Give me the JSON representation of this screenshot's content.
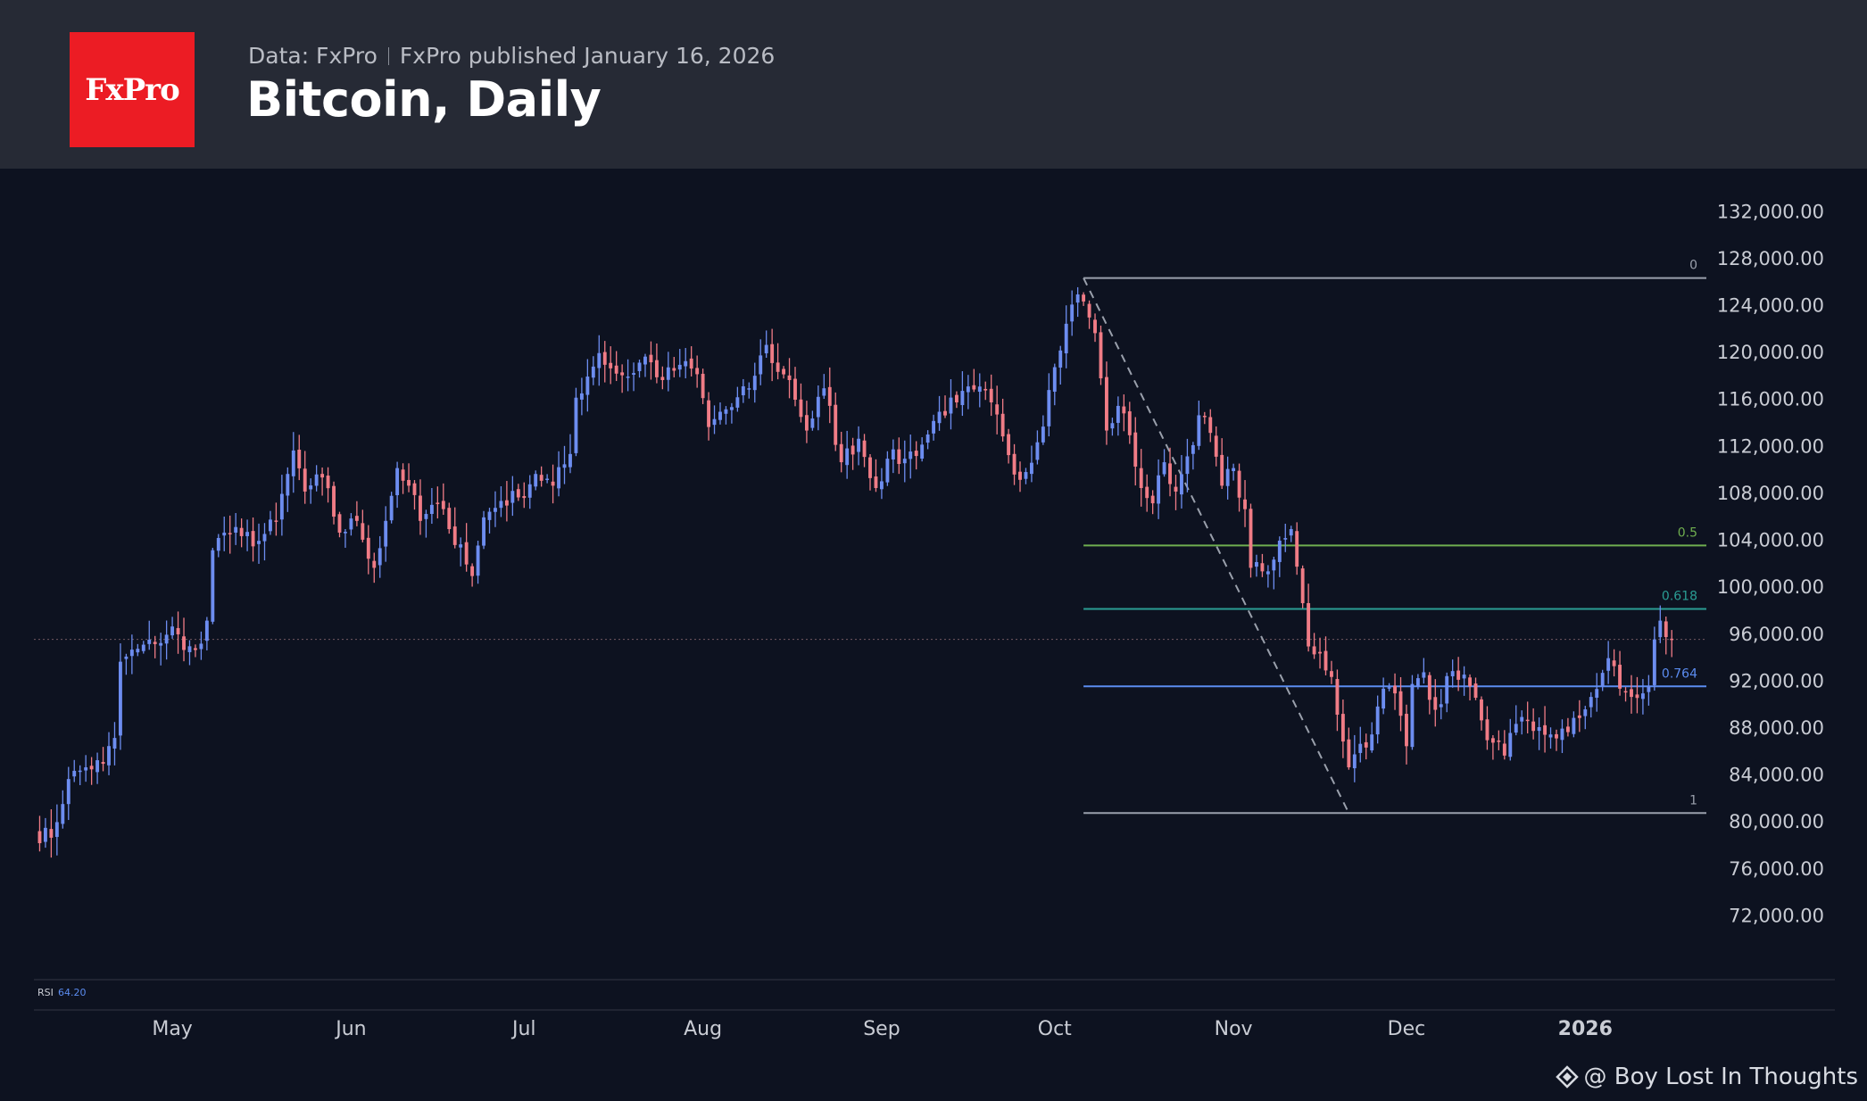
{
  "header": {
    "logo_text": "FxPro",
    "data_source": "Data: FxPro",
    "published": "FxPro published January 16, 2026",
    "title": "Bitcoin, Daily"
  },
  "watermark": "@ Boy Lost In Thoughts",
  "colors": {
    "background": "#0d1220",
    "header": "#262a35",
    "logo": "#ec1c24",
    "up": "#6d8df0",
    "down": "#f07c86",
    "fib_0": "#9aa0ac",
    "fib_05": "#6fae4f",
    "fib_0618": "#2a9d94",
    "fib_0764": "#5b8cf0",
    "fib_1": "#9aa0ac"
  },
  "chart_data": {
    "type": "candlestick",
    "title": "Bitcoin, Daily",
    "ylim": [
      68000,
      134000
    ],
    "y_ticks": [
      132000,
      128000,
      124000,
      120000,
      116000,
      112000,
      108000,
      104000,
      100000,
      96000,
      92000,
      88000,
      84000,
      80000,
      76000,
      72000
    ],
    "y_tick_labels": [
      "132,000.00",
      "128,000.00",
      "124,000.00",
      "120,000.00",
      "116,000.00",
      "112,000.00",
      "108,000.00",
      "104,000.00",
      "100,000.00",
      "96,000.00",
      "92,000.00",
      "88,000.00",
      "84,000.00",
      "80,000.00",
      "76,000.00",
      "72,000.00"
    ],
    "x_start": "2025-04-07",
    "x_end": "2026-01-22",
    "x_ticks": [
      {
        "date": "2025-05-01",
        "label": "May",
        "bold": false
      },
      {
        "date": "2025-06-01",
        "label": "Jun",
        "bold": false
      },
      {
        "date": "2025-07-01",
        "label": "Jul",
        "bold": false
      },
      {
        "date": "2025-08-01",
        "label": "Aug",
        "bold": false
      },
      {
        "date": "2025-09-01",
        "label": "Sep",
        "bold": false
      },
      {
        "date": "2025-10-01",
        "label": "Oct",
        "bold": false
      },
      {
        "date": "2025-11-01",
        "label": "Nov",
        "bold": false
      },
      {
        "date": "2025-12-01",
        "label": "Dec",
        "bold": false
      },
      {
        "date": "2026-01-01",
        "label": "2026",
        "bold": true
      }
    ],
    "closes": [
      [
        "2025-04-07",
        79000
      ],
      [
        "2025-04-10",
        78500
      ],
      [
        "2025-04-13",
        83500
      ],
      [
        "2025-04-16",
        84500
      ],
      [
        "2025-04-19",
        84800
      ],
      [
        "2025-04-21",
        87000
      ],
      [
        "2025-04-22",
        93500
      ],
      [
        "2025-04-25",
        94600
      ],
      [
        "2025-04-28",
        95000
      ],
      [
        "2025-05-01",
        96500
      ],
      [
        "2025-05-03",
        94500
      ],
      [
        "2025-05-05",
        94500
      ],
      [
        "2025-05-07",
        97000
      ],
      [
        "2025-05-08",
        103000
      ],
      [
        "2025-05-10",
        104500
      ],
      [
        "2025-05-13",
        104200
      ],
      [
        "2025-05-16",
        103800
      ],
      [
        "2025-05-19",
        105500
      ],
      [
        "2025-05-21",
        109500
      ],
      [
        "2025-05-22",
        111500
      ],
      [
        "2025-05-24",
        108000
      ],
      [
        "2025-05-27",
        109200
      ],
      [
        "2025-05-30",
        104500
      ],
      [
        "2025-06-02",
        105500
      ],
      [
        "2025-06-05",
        101500
      ],
      [
        "2025-06-07",
        105500
      ],
      [
        "2025-06-09",
        110000
      ],
      [
        "2025-06-11",
        108500
      ],
      [
        "2025-06-13",
        105500
      ],
      [
        "2025-06-16",
        107000
      ],
      [
        "2025-06-18",
        104800
      ],
      [
        "2025-06-20",
        103500
      ],
      [
        "2025-06-22",
        100800
      ],
      [
        "2025-06-24",
        105800
      ],
      [
        "2025-06-27",
        107200
      ],
      [
        "2025-06-30",
        107500
      ],
      [
        "2025-07-03",
        109500
      ],
      [
        "2025-07-06",
        108500
      ],
      [
        "2025-07-09",
        111200
      ],
      [
        "2025-07-10",
        116000
      ],
      [
        "2025-07-12",
        117800
      ],
      [
        "2025-07-14",
        119800
      ],
      [
        "2025-07-16",
        118500
      ],
      [
        "2025-07-19",
        117800
      ],
      [
        "2025-07-22",
        119500
      ],
      [
        "2025-07-25",
        117500
      ],
      [
        "2025-07-28",
        118800
      ],
      [
        "2025-07-31",
        118000
      ],
      [
        "2025-08-02",
        113500
      ],
      [
        "2025-08-04",
        114800
      ],
      [
        "2025-08-06",
        115200
      ],
      [
        "2025-08-09",
        116800
      ],
      [
        "2025-08-12",
        120500
      ],
      [
        "2025-08-14",
        118200
      ],
      [
        "2025-08-16",
        117500
      ],
      [
        "2025-08-19",
        113200
      ],
      [
        "2025-08-22",
        116800
      ],
      [
        "2025-08-25",
        110500
      ],
      [
        "2025-08-28",
        112500
      ],
      [
        "2025-08-31",
        108300
      ],
      [
        "2025-09-02",
        110800
      ],
      [
        "2025-09-05",
        110800
      ],
      [
        "2025-09-08",
        112000
      ],
      [
        "2025-09-11",
        114800
      ],
      [
        "2025-09-14",
        115600
      ],
      [
        "2025-09-17",
        116700
      ],
      [
        "2025-09-20",
        115600
      ],
      [
        "2025-09-22",
        112700
      ],
      [
        "2025-09-25",
        109000
      ],
      [
        "2025-09-28",
        112200
      ],
      [
        "2025-10-01",
        118600
      ],
      [
        "2025-10-03",
        122300
      ],
      [
        "2025-10-05",
        124800
      ],
      [
        "2025-10-06",
        124200
      ],
      [
        "2025-10-08",
        121500
      ],
      [
        "2025-10-10",
        113200
      ],
      [
        "2025-10-12",
        115300
      ],
      [
        "2025-10-14",
        112800
      ],
      [
        "2025-10-16",
        108300
      ],
      [
        "2025-10-18",
        107000
      ],
      [
        "2025-10-20",
        110500
      ],
      [
        "2025-10-22",
        108000
      ],
      [
        "2025-10-24",
        111000
      ],
      [
        "2025-10-26",
        114500
      ],
      [
        "2025-10-28",
        113000
      ],
      [
        "2025-10-30",
        108500
      ],
      [
        "2025-11-01",
        110000
      ],
      [
        "2025-11-03",
        106500
      ],
      [
        "2025-11-04",
        101500
      ],
      [
        "2025-11-06",
        101200
      ],
      [
        "2025-11-08",
        102200
      ],
      [
        "2025-11-11",
        104800
      ],
      [
        "2025-11-12",
        101600
      ],
      [
        "2025-11-14",
        94800
      ],
      [
        "2025-11-16",
        94200
      ],
      [
        "2025-11-18",
        92200
      ],
      [
        "2025-11-20",
        86700
      ],
      [
        "2025-11-21",
        84500
      ],
      [
        "2025-11-23",
        86500
      ],
      [
        "2025-11-25",
        87300
      ],
      [
        "2025-11-27",
        91200
      ],
      [
        "2025-11-29",
        90800
      ],
      [
        "2025-12-01",
        86300
      ],
      [
        "2025-12-02",
        91600
      ],
      [
        "2025-12-04",
        92600
      ],
      [
        "2025-12-06",
        89400
      ],
      [
        "2025-12-09",
        92700
      ],
      [
        "2025-12-11",
        92400
      ],
      [
        "2025-12-14",
        88500
      ],
      [
        "2025-12-16",
        86600
      ],
      [
        "2025-12-18",
        85500
      ],
      [
        "2025-12-20",
        88200
      ],
      [
        "2025-12-23",
        87600
      ],
      [
        "2025-12-26",
        87300
      ],
      [
        "2025-12-29",
        87500
      ],
      [
        "2025-12-31",
        88700
      ],
      [
        "2026-01-02",
        90500
      ],
      [
        "2026-01-05",
        93800
      ],
      [
        "2026-01-07",
        91200
      ],
      [
        "2026-01-09",
        90500
      ],
      [
        "2026-01-11",
        90800
      ],
      [
        "2026-01-12",
        91400
      ],
      [
        "2026-01-13",
        95400
      ],
      [
        "2026-01-14",
        97000
      ],
      [
        "2026-01-15",
        95600
      ],
      [
        "2026-01-16",
        95400
      ]
    ],
    "current_price": 95400,
    "fibonacci": {
      "start_date": "2025-10-06",
      "end_date": "2026-01-22",
      "high": 126200,
      "low": 80600,
      "levels": [
        {
          "label": "0",
          "value": 126200,
          "color": "#9aa0ac"
        },
        {
          "label": "0.5",
          "value": 103400,
          "color": "#6fae4f"
        },
        {
          "label": "0.618",
          "value": 98000,
          "color": "#2a9d94"
        },
        {
          "label": "0.764",
          "value": 91400,
          "color": "#5b8cf0"
        },
        {
          "label": "1",
          "value": 80600,
          "color": "#9aa0ac"
        }
      ],
      "trend_line": [
        [
          "2025-10-06",
          126200
        ],
        [
          "2025-11-21",
          80600
        ]
      ]
    },
    "indicator": {
      "name": "RSI",
      "value": "64.20"
    }
  }
}
